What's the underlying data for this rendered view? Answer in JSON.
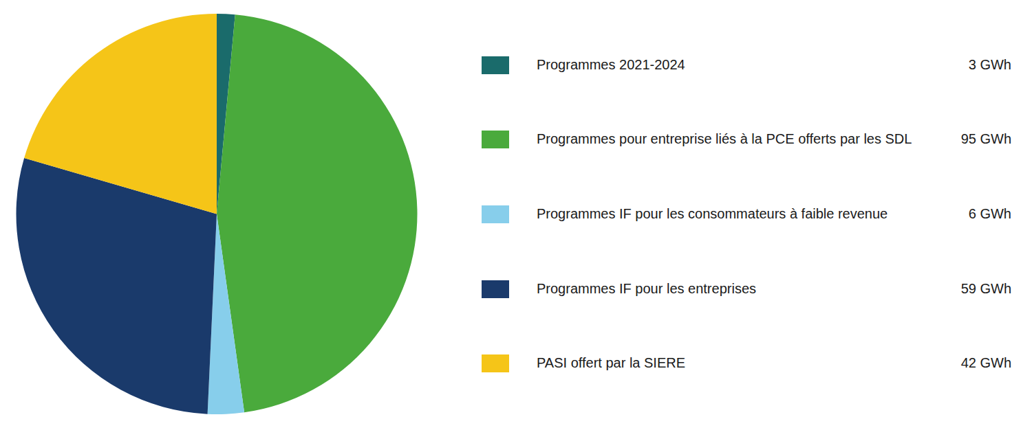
{
  "chart_data": {
    "type": "pie",
    "categories": [
      "Programmes 2021-2024",
      "Programmes pour entreprise liés à la PCE offerts par les SDL",
      "Programmes IF pour les consommateurs à faible revenue",
      "Programmes IF pour les entreprises",
      "PASI offert par la SIERE"
    ],
    "values": [
      3,
      95,
      6,
      59,
      42
    ],
    "value_labels": [
      "3 GWh",
      "95 GWh",
      "6 GWh",
      "59 GWh",
      "42 GWh"
    ],
    "colors": [
      "#1a6b6b",
      "#4aaa3c",
      "#87ceeb",
      "#1a3a6b",
      "#f5c518"
    ],
    "legend": "right"
  }
}
